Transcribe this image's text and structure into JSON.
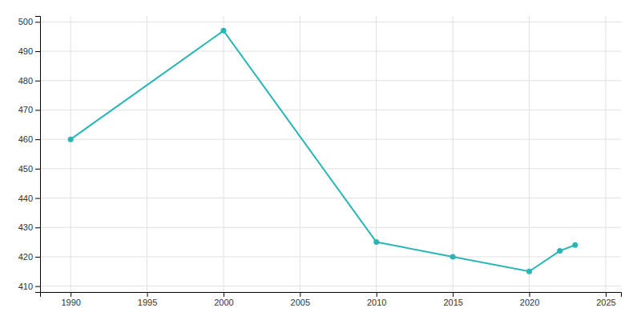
{
  "chart_data": {
    "type": "line",
    "x": [
      1990,
      2000,
      2010,
      2015,
      2020,
      2022,
      2023
    ],
    "values": [
      460,
      497,
      425,
      420,
      415,
      422,
      424
    ],
    "color": "#2ab5b5",
    "marker": "circle",
    "xlim": [
      1988,
      2026
    ],
    "ylim": [
      408,
      502
    ],
    "xticks": [
      1990,
      1995,
      2000,
      2005,
      2010,
      2015,
      2020,
      2025
    ],
    "yticks": [
      410,
      420,
      430,
      440,
      450,
      460,
      470,
      480,
      490,
      500
    ],
    "grid": true
  }
}
